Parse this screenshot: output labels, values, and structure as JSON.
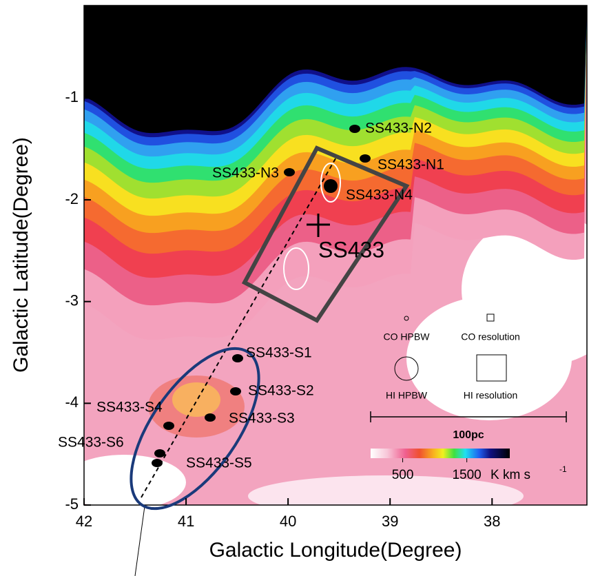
{
  "chart_data": {
    "type": "map",
    "xlabel": "Galactic Longitude(Degree)",
    "ylabel": "Galactic Latitude(Degree)",
    "xlim": [
      42,
      37.07
    ],
    "ylim": [
      -5,
      -0.09
    ],
    "xticks": [
      42,
      41,
      40,
      39,
      38
    ],
    "yticks": [
      -1,
      -2,
      -3,
      -4,
      -5
    ],
    "annotations": [
      "SS433-N2",
      "SS433-N1",
      "SS433-N3",
      "SS433-N4",
      "SS433-S1",
      "SS433-S2",
      "SS433-S3",
      "SS433-S4",
      "SS433-S6",
      "SS433-S5"
    ],
    "source_label": "SS433",
    "beam_labels": [
      "CO HPBW",
      "CO resolution",
      "HI HPBW",
      "HI resolution"
    ],
    "scale_bar": "100pc",
    "colorbar": {
      "lim": [
        0,
        2170
      ],
      "ticks": [
        500,
        1500
      ],
      "unit": "K km s",
      "unit_exponent": "-1"
    }
  }
}
